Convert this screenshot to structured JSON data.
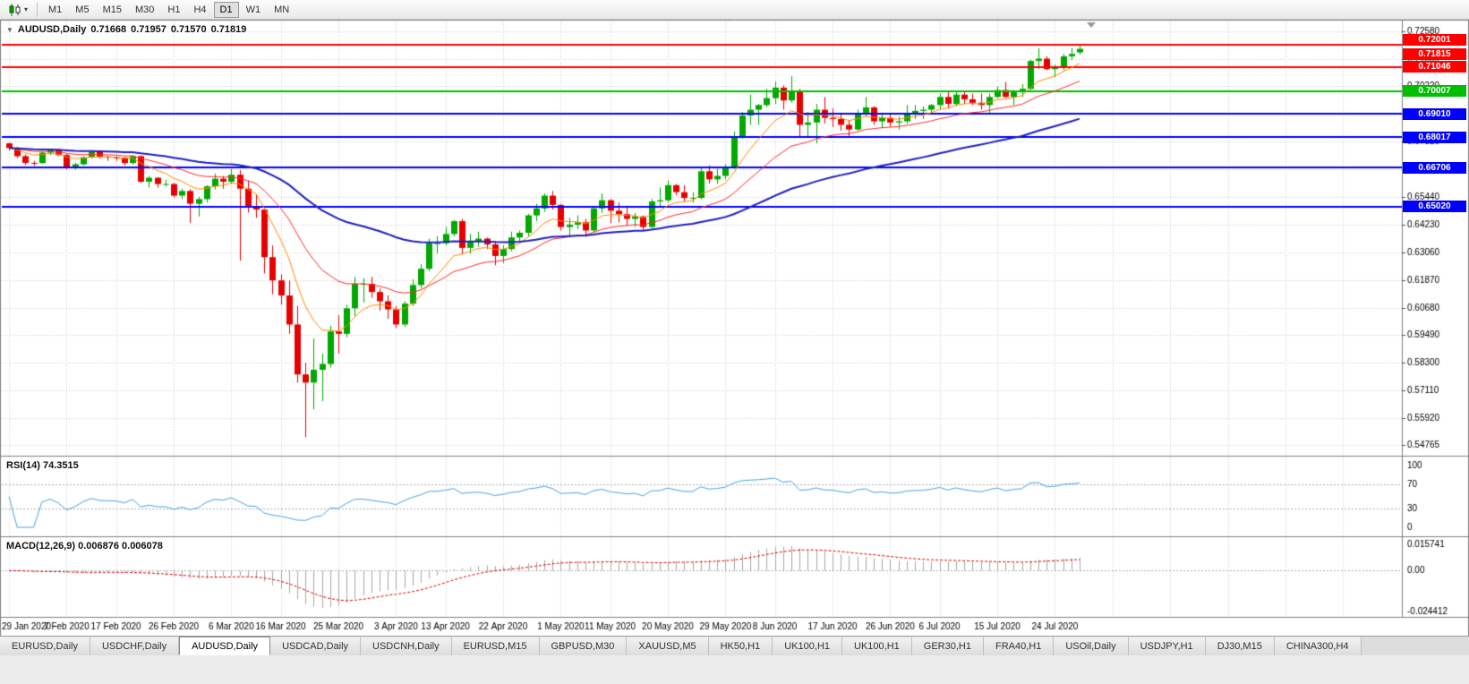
{
  "toolbar": {
    "chart_type_tooltip": "Candlesticks",
    "timeframes": [
      "M1",
      "M5",
      "M15",
      "M30",
      "H1",
      "H4",
      "D1",
      "W1",
      "MN"
    ],
    "active_timeframe": "D1"
  },
  "chart": {
    "title": "AUDUSD,Daily",
    "ohlc": {
      "open": "0.71668",
      "high": "0.71957",
      "low": "0.71570",
      "close": "0.71819"
    },
    "bull_color": "#00A800",
    "bear_color": "#E60000",
    "price_axis": {
      "ticks": [
        "0.72580",
        "0.71390",
        "0.70220",
        "0.69010",
        "0.67820",
        "0.66630",
        "0.65440",
        "0.64230",
        "0.63060",
        "0.61870",
        "0.60680",
        "0.59490",
        "0.58300",
        "0.57110",
        "0.55920",
        "0.54765"
      ]
    },
    "levels": [
      {
        "label": "0.72001",
        "value": 0.72001,
        "color": "#FF0000",
        "line": true,
        "role": "resistance"
      },
      {
        "label": "0.71815",
        "value": 0.71815,
        "color": "#FF0000",
        "line": false,
        "role": "current-price"
      },
      {
        "label": "0.71046",
        "value": 0.71046,
        "color": "#FF0000",
        "line": true,
        "role": "resistance"
      },
      {
        "label": "0.70007",
        "value": 0.70007,
        "color": "#00BE00",
        "line": true,
        "role": "level"
      },
      {
        "label": "0.69010",
        "value": 0.6901,
        "color": "#0000FF",
        "line": true,
        "role": "support"
      },
      {
        "label": "0.68017",
        "value": 0.68017,
        "color": "#0000FF",
        "line": true,
        "role": "support"
      },
      {
        "label": "0.66706",
        "value": 0.66706,
        "color": "#0000FF",
        "line": true,
        "role": "support"
      },
      {
        "label": "0.65020",
        "value": 0.6502,
        "color": "#0000FF",
        "line": true,
        "role": "support"
      }
    ]
  },
  "chart_data": {
    "type": "candlestick",
    "symbol": "AUDUSD",
    "timeframe": "Daily",
    "date_tick_labels": [
      "29 Jan 2020",
      "7 Feb 2020",
      "17 Feb 2020",
      "26 Feb 2020",
      "6 Mar 2020",
      "16 Mar 2020",
      "25 Mar 2020",
      "3 Apr 2020",
      "13 Apr 2020",
      "22 Apr 2020",
      "1 May 2020",
      "11 May 2020",
      "20 May 2020",
      "29 May 2020",
      "8 Jun 2020",
      "17 Jun 2020",
      "26 Jun 2020",
      "6 Jul 2020",
      "15 Jul 2020",
      "24 Jul 2020"
    ],
    "date_tick_indices": [
      0,
      7,
      13,
      20,
      27,
      33,
      40,
      47,
      53,
      60,
      67,
      73,
      80,
      87,
      93,
      100,
      107,
      113,
      120,
      127
    ],
    "moving_averages": [
      {
        "name": "fast",
        "period": 8,
        "color": "#FF8A00",
        "width": 1
      },
      {
        "name": "medium",
        "period": 20,
        "color": "#FF2A2A",
        "width": 1
      },
      {
        "name": "slow",
        "period": 55,
        "color": "#2020BF",
        "width": 2
      }
    ],
    "candles": [
      [
        0.6775,
        0.6778,
        0.6745,
        0.6755
      ],
      [
        0.6755,
        0.676,
        0.6712,
        0.672
      ],
      [
        0.672,
        0.6728,
        0.6682,
        0.6691
      ],
      [
        0.6691,
        0.67,
        0.6678,
        0.669
      ],
      [
        0.669,
        0.674,
        0.6688,
        0.6735
      ],
      [
        0.6735,
        0.675,
        0.6725,
        0.6745
      ],
      [
        0.6745,
        0.6752,
        0.672,
        0.6725
      ],
      [
        0.6725,
        0.673,
        0.6662,
        0.667
      ],
      [
        0.667,
        0.6692,
        0.6662,
        0.6685
      ],
      [
        0.6685,
        0.672,
        0.668,
        0.6715
      ],
      [
        0.6715,
        0.6743,
        0.671,
        0.6738
      ],
      [
        0.6738,
        0.674,
        0.671,
        0.6718
      ],
      [
        0.6718,
        0.6722,
        0.67,
        0.6715
      ],
      [
        0.6715,
        0.672,
        0.67,
        0.6713
      ],
      [
        0.6713,
        0.6717,
        0.668,
        0.669
      ],
      [
        0.669,
        0.6725,
        0.6685,
        0.672
      ],
      [
        0.672,
        0.6722,
        0.6605,
        0.661
      ],
      [
        0.661,
        0.6635,
        0.6585,
        0.6627
      ],
      [
        0.6627,
        0.663,
        0.6585,
        0.66
      ],
      [
        0.66,
        0.6618,
        0.659,
        0.66
      ],
      [
        0.66,
        0.6605,
        0.6542,
        0.655
      ],
      [
        0.655,
        0.658,
        0.6535,
        0.657
      ],
      [
        0.657,
        0.6578,
        0.6433,
        0.6515
      ],
      [
        0.6515,
        0.6545,
        0.646,
        0.6535
      ],
      [
        0.6535,
        0.6595,
        0.652,
        0.659
      ],
      [
        0.659,
        0.6645,
        0.6576,
        0.6623
      ],
      [
        0.6623,
        0.6635,
        0.658,
        0.661
      ],
      [
        0.661,
        0.6665,
        0.66,
        0.664
      ],
      [
        0.664,
        0.666,
        0.627,
        0.658
      ],
      [
        0.658,
        0.6615,
        0.6477,
        0.65
      ],
      [
        0.65,
        0.6555,
        0.6455,
        0.649
      ],
      [
        0.649,
        0.6495,
        0.6215,
        0.6285
      ],
      [
        0.6285,
        0.6335,
        0.6125,
        0.6185
      ],
      [
        0.6185,
        0.621,
        0.608,
        0.612
      ],
      [
        0.612,
        0.6185,
        0.5955,
        0.5995
      ],
      [
        0.5995,
        0.6075,
        0.5745,
        0.578
      ],
      [
        0.578,
        0.583,
        0.551,
        0.5745
      ],
      [
        0.5745,
        0.5935,
        0.563,
        0.58
      ],
      [
        0.58,
        0.587,
        0.5665,
        0.5825
      ],
      [
        0.5825,
        0.599,
        0.581,
        0.5965
      ],
      [
        0.5965,
        0.6035,
        0.587,
        0.5955
      ],
      [
        0.5955,
        0.608,
        0.594,
        0.6065
      ],
      [
        0.6065,
        0.62,
        0.603,
        0.617
      ],
      [
        0.617,
        0.6195,
        0.609,
        0.617
      ],
      [
        0.617,
        0.62,
        0.611,
        0.6135
      ],
      [
        0.6135,
        0.615,
        0.6055,
        0.6095
      ],
      [
        0.6095,
        0.612,
        0.602,
        0.606
      ],
      [
        0.606,
        0.6075,
        0.598,
        0.5995
      ],
      [
        0.5995,
        0.6095,
        0.5985,
        0.6085
      ],
      [
        0.6085,
        0.619,
        0.6075,
        0.6165
      ],
      [
        0.6165,
        0.6255,
        0.615,
        0.6235
      ],
      [
        0.6235,
        0.6365,
        0.6225,
        0.6345
      ],
      [
        0.6345,
        0.6375,
        0.63,
        0.6345
      ],
      [
        0.6345,
        0.6415,
        0.6335,
        0.6385
      ],
      [
        0.6385,
        0.6445,
        0.6375,
        0.644
      ],
      [
        0.644,
        0.645,
        0.63,
        0.6325
      ],
      [
        0.6325,
        0.6385,
        0.63,
        0.6355
      ],
      [
        0.6355,
        0.6395,
        0.633,
        0.6365
      ],
      [
        0.6365,
        0.637,
        0.632,
        0.634
      ],
      [
        0.634,
        0.6355,
        0.625,
        0.629
      ],
      [
        0.629,
        0.6335,
        0.626,
        0.632
      ],
      [
        0.632,
        0.6395,
        0.631,
        0.637
      ],
      [
        0.637,
        0.64,
        0.635,
        0.639
      ],
      [
        0.639,
        0.6472,
        0.6372,
        0.6465
      ],
      [
        0.6465,
        0.6515,
        0.644,
        0.6495
      ],
      [
        0.6495,
        0.656,
        0.648,
        0.655
      ],
      [
        0.655,
        0.657,
        0.649,
        0.651
      ],
      [
        0.651,
        0.6515,
        0.64,
        0.6415
      ],
      [
        0.6415,
        0.6455,
        0.6375,
        0.6425
      ],
      [
        0.6425,
        0.6465,
        0.6405,
        0.6435
      ],
      [
        0.6435,
        0.645,
        0.6372,
        0.64
      ],
      [
        0.64,
        0.65,
        0.639,
        0.6495
      ],
      [
        0.6495,
        0.656,
        0.6475,
        0.653
      ],
      [
        0.653,
        0.6535,
        0.6432,
        0.6485
      ],
      [
        0.6485,
        0.652,
        0.6435,
        0.647
      ],
      [
        0.647,
        0.6505,
        0.642,
        0.645
      ],
      [
        0.645,
        0.6475,
        0.6415,
        0.646
      ],
      [
        0.646,
        0.6465,
        0.6402,
        0.6415
      ],
      [
        0.6415,
        0.6535,
        0.641,
        0.6525
      ],
      [
        0.6525,
        0.6585,
        0.6505,
        0.653
      ],
      [
        0.653,
        0.6615,
        0.652,
        0.6595
      ],
      [
        0.6595,
        0.66,
        0.6552,
        0.6565
      ],
      [
        0.6565,
        0.6595,
        0.6525,
        0.654
      ],
      [
        0.654,
        0.6565,
        0.652,
        0.654
      ],
      [
        0.654,
        0.6675,
        0.6535,
        0.6655
      ],
      [
        0.6655,
        0.668,
        0.6602,
        0.662
      ],
      [
        0.662,
        0.6665,
        0.66,
        0.6635
      ],
      [
        0.6635,
        0.6685,
        0.662,
        0.667
      ],
      [
        0.667,
        0.6825,
        0.6665,
        0.68
      ],
      [
        0.68,
        0.691,
        0.6795,
        0.6895
      ],
      [
        0.6895,
        0.6985,
        0.6855,
        0.692
      ],
      [
        0.692,
        0.6945,
        0.6855,
        0.694
      ],
      [
        0.694,
        0.701,
        0.693,
        0.697
      ],
      [
        0.697,
        0.704,
        0.6945,
        0.7015
      ],
      [
        0.7015,
        0.7025,
        0.692,
        0.696
      ],
      [
        0.696,
        0.7065,
        0.695,
        0.7
      ],
      [
        0.7,
        0.701,
        0.68,
        0.6855
      ],
      [
        0.6855,
        0.691,
        0.68,
        0.6865
      ],
      [
        0.6865,
        0.6945,
        0.6775,
        0.692
      ],
      [
        0.692,
        0.6975,
        0.686,
        0.6885
      ],
      [
        0.6885,
        0.6925,
        0.6845,
        0.688
      ],
      [
        0.688,
        0.6905,
        0.683,
        0.6855
      ],
      [
        0.6855,
        0.6875,
        0.68,
        0.6835
      ],
      [
        0.6835,
        0.692,
        0.683,
        0.6905
      ],
      [
        0.6905,
        0.6975,
        0.689,
        0.693
      ],
      [
        0.693,
        0.6935,
        0.6855,
        0.687
      ],
      [
        0.687,
        0.6905,
        0.684,
        0.6885
      ],
      [
        0.6885,
        0.69,
        0.6845,
        0.6865
      ],
      [
        0.6865,
        0.689,
        0.6835,
        0.687
      ],
      [
        0.687,
        0.694,
        0.686,
        0.6905
      ],
      [
        0.6905,
        0.694,
        0.688,
        0.6915
      ],
      [
        0.6915,
        0.6935,
        0.688,
        0.692
      ],
      [
        0.692,
        0.6945,
        0.69,
        0.694
      ],
      [
        0.694,
        0.699,
        0.692,
        0.6975
      ],
      [
        0.6975,
        0.6995,
        0.6925,
        0.6945
      ],
      [
        0.6945,
        0.7,
        0.6935,
        0.6985
      ],
      [
        0.6985,
        0.7,
        0.6945,
        0.6965
      ],
      [
        0.6965,
        0.699,
        0.694,
        0.695
      ],
      [
        0.695,
        0.699,
        0.692,
        0.694
      ],
      [
        0.694,
        0.699,
        0.6905,
        0.6975
      ],
      [
        0.6975,
        0.702,
        0.697,
        0.7005
      ],
      [
        0.7005,
        0.704,
        0.697,
        0.6975
      ],
      [
        0.6975,
        0.7005,
        0.694,
        0.6995
      ],
      [
        0.6995,
        0.703,
        0.6975,
        0.701
      ],
      [
        0.701,
        0.7135,
        0.7005,
        0.713
      ],
      [
        0.713,
        0.7185,
        0.7095,
        0.714
      ],
      [
        0.714,
        0.715,
        0.709,
        0.7095
      ],
      [
        0.7095,
        0.7115,
        0.706,
        0.7105
      ],
      [
        0.7105,
        0.716,
        0.709,
        0.715
      ],
      [
        0.715,
        0.7185,
        0.7135,
        0.716
      ],
      [
        0.71668,
        0.71957,
        0.7157,
        0.71819
      ]
    ]
  },
  "rsi_panel": {
    "label": "RSI(14) 74.3515",
    "period": 14,
    "color": "#4DA3DC",
    "ticks": [
      "100",
      "70",
      "30",
      "0"
    ],
    "levels": [
      70,
      30
    ]
  },
  "macd_panel": {
    "label": "MACD(12,26,9) 0.006876 0.006078",
    "histogram_color": "#A6A6A6",
    "signal_color": "#E00000",
    "ticks": [
      "0.015741",
      "0.00",
      "-0.024412"
    ]
  },
  "footer": {
    "tabs": [
      "EURUSD,Daily",
      "USDCHF,Daily",
      "AUDUSD,Daily",
      "USDCAD,Daily",
      "USDCNH,Daily",
      "EURUSD,M15",
      "GBPUSD,M30",
      "XAUUSD,M5",
      "HK50,H1",
      "UK100,H1",
      "UK100,H1",
      "GER30,H1",
      "FRA40,H1",
      "USOil,Daily",
      "USDJPY,H1",
      "DJ30,M15",
      "CHINA300,H4"
    ],
    "active_tab": "AUDUSD,Daily"
  }
}
